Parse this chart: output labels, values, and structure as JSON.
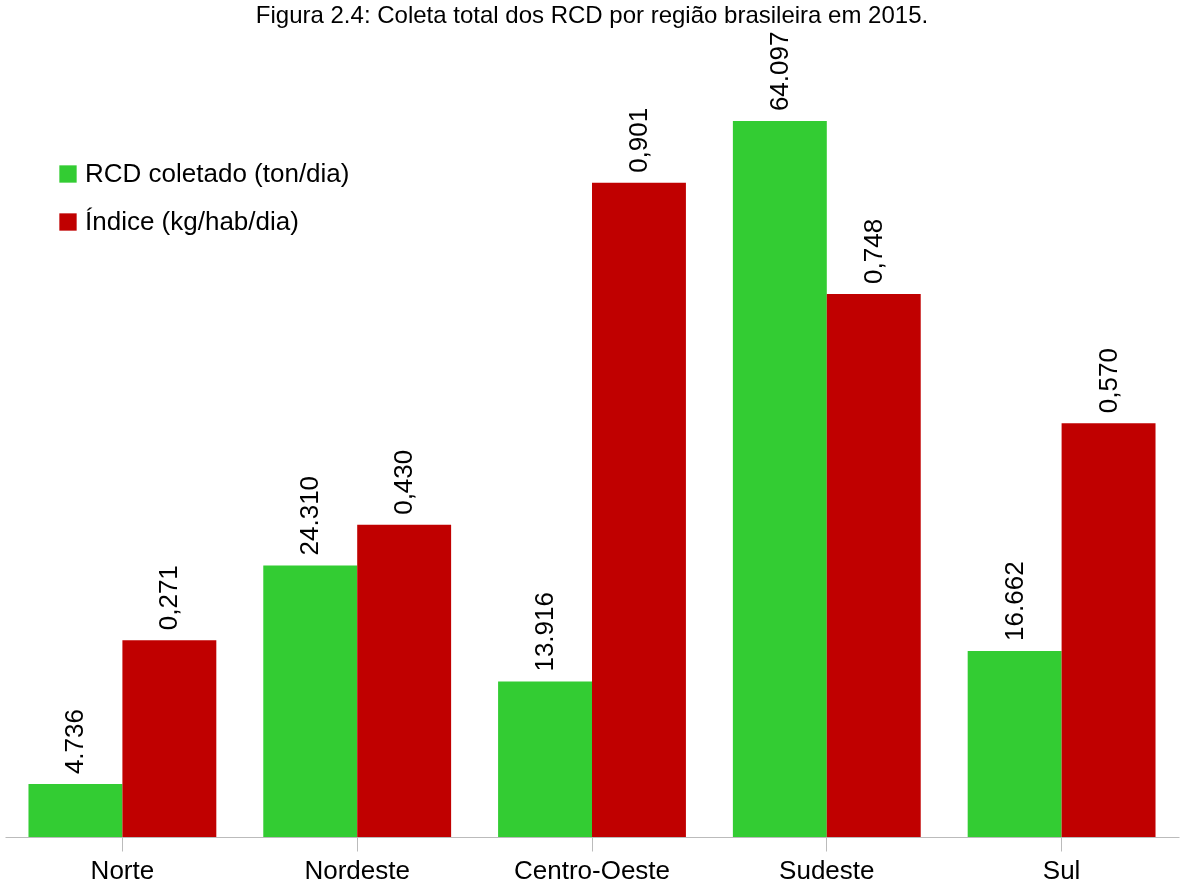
{
  "chart_data": {
    "type": "bar",
    "title": "Figura 2.4: Coleta total dos RCD por região brasileira em 2015.",
    "categories": [
      "Norte",
      "Nordeste",
      "Centro-Oeste",
      "Sudeste",
      "Sul"
    ],
    "series": [
      {
        "name": "RCD coletado (ton/dia)",
        "color": "#33cc33",
        "values": [
          4736,
          24310,
          13916,
          64097,
          16662
        ],
        "value_labels": [
          "4.736",
          "24.310",
          "13.916",
          "64.097",
          "16.662"
        ]
      },
      {
        "name": "Índice (kg/hab/dia)",
        "color": "#c00000",
        "axis": "y2",
        "values": [
          0.271,
          0.43,
          0.901,
          0.748,
          0.57
        ],
        "value_labels": [
          "0,271",
          "0,430",
          "0,901",
          "0,748",
          "0,570"
        ]
      }
    ],
    "legend": "top left"
  }
}
